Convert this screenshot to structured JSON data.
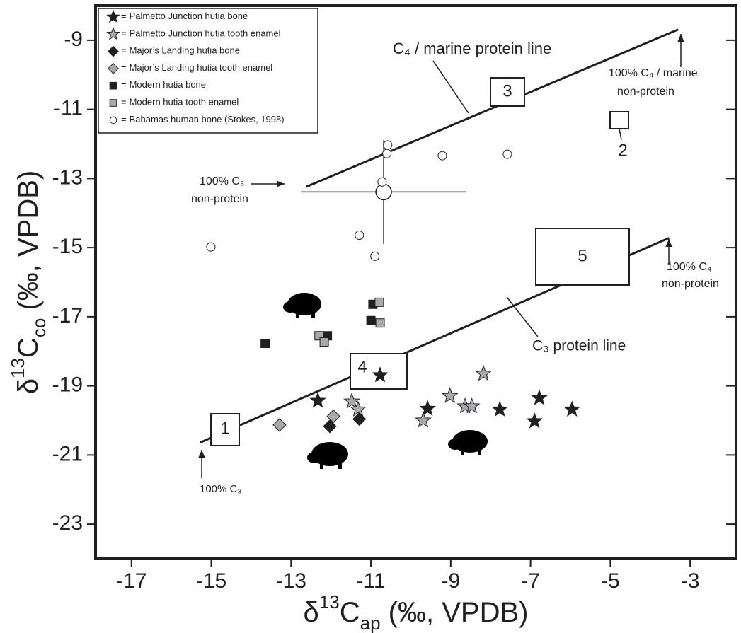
{
  "chart_data": {
    "type": "scatter",
    "x_label": [
      "δ",
      "13",
      "C",
      "ap",
      " (‰, VPDB)"
    ],
    "y_label": [
      "δ",
      "13",
      "C",
      "co",
      " (‰, VPDB)"
    ],
    "xlim": [
      -17.9,
      -1.85
    ],
    "ylim": [
      -24,
      -8
    ],
    "xticks": [
      -17,
      -15,
      -13,
      -11,
      -9,
      -7,
      -5,
      -3
    ],
    "yticks": [
      -23,
      -21,
      -19,
      -17,
      -15,
      -13,
      -11,
      -9
    ],
    "legend_separator": "=",
    "series": [
      {
        "name": "Palmetto Junction hutia bone",
        "marker": "star",
        "color": "#231f20",
        "x": [
          -10.77,
          -12.33,
          -9.58,
          -7.77,
          -6.78,
          -5.96,
          -6.9
        ],
        "values": [
          -18.69,
          -19.43,
          -19.66,
          -19.68,
          -19.35,
          -19.68,
          -20.02
        ]
      },
      {
        "name": "Palmetto Junction hutia tooth enamel",
        "marker": "star",
        "color": "#a7a9ac",
        "x": [
          -8.18,
          -9.02,
          -11.48,
          -11.32,
          -8.64,
          -8.47,
          -9.69
        ],
        "values": [
          -18.65,
          -19.29,
          -19.45,
          -19.68,
          -19.59,
          -19.59,
          -20.0
        ]
      },
      {
        "name": "Major’s Landing hutia bone",
        "marker": "diamond",
        "color": "#231f20",
        "x": [
          -12.03,
          -11.29
        ],
        "values": [
          -20.17,
          -19.96
        ]
      },
      {
        "name": "Major’s Landing hutia tooth enamel",
        "marker": "diamond",
        "color": "#a7a9ac",
        "x": [
          -13.29,
          -11.94
        ],
        "values": [
          -20.13,
          -19.88
        ]
      },
      {
        "name": "Modern hutia bone",
        "marker": "square",
        "color": "#231f20",
        "x": [
          -13.65,
          -12.09,
          -10.95,
          -11.0
        ],
        "values": [
          -17.77,
          -17.55,
          -16.64,
          -17.11
        ]
      },
      {
        "name": "Modern hutia tooth enamel",
        "marker": "square",
        "color": "#a7a9ac",
        "x": [
          -12.3,
          -12.17,
          -10.79,
          -10.77
        ],
        "values": [
          -17.55,
          -17.73,
          -16.58,
          -17.18
        ]
      },
      {
        "name": "Bahamas human bone (Stokes, 1998)",
        "marker": "circle",
        "color": "#ffffff",
        "x": [
          -10.58,
          -10.6,
          -9.21,
          -7.58,
          -10.72,
          -11.29,
          -10.9,
          -15.01
        ],
        "values": [
          -12.03,
          -12.28,
          -12.34,
          -12.3,
          -13.1,
          -14.64,
          -15.25,
          -14.98
        ]
      }
    ],
    "mean": {
      "x": -10.68,
      "y": -13.39,
      "x_err": 2.06,
      "y_err": 1.5
    },
    "lines": [
      {
        "x": [
          -12.62,
          -3.3
        ],
        "values": [
          -13.24,
          -8.69
        ]
      },
      {
        "x": [
          -15.28,
          -3.53
        ],
        "values": [
          -20.64,
          -14.72
        ]
      }
    ],
    "annotations": [
      "C₄ / marine protein line",
      "100% C₄ / marine",
      "non-protein",
      "100% C₃",
      "non-protein",
      "100% C₄",
      "non-protein",
      "C₃ protein line",
      "100% C₃"
    ],
    "box_labels": [
      "1",
      "2",
      "3",
      "4",
      "5"
    ]
  }
}
